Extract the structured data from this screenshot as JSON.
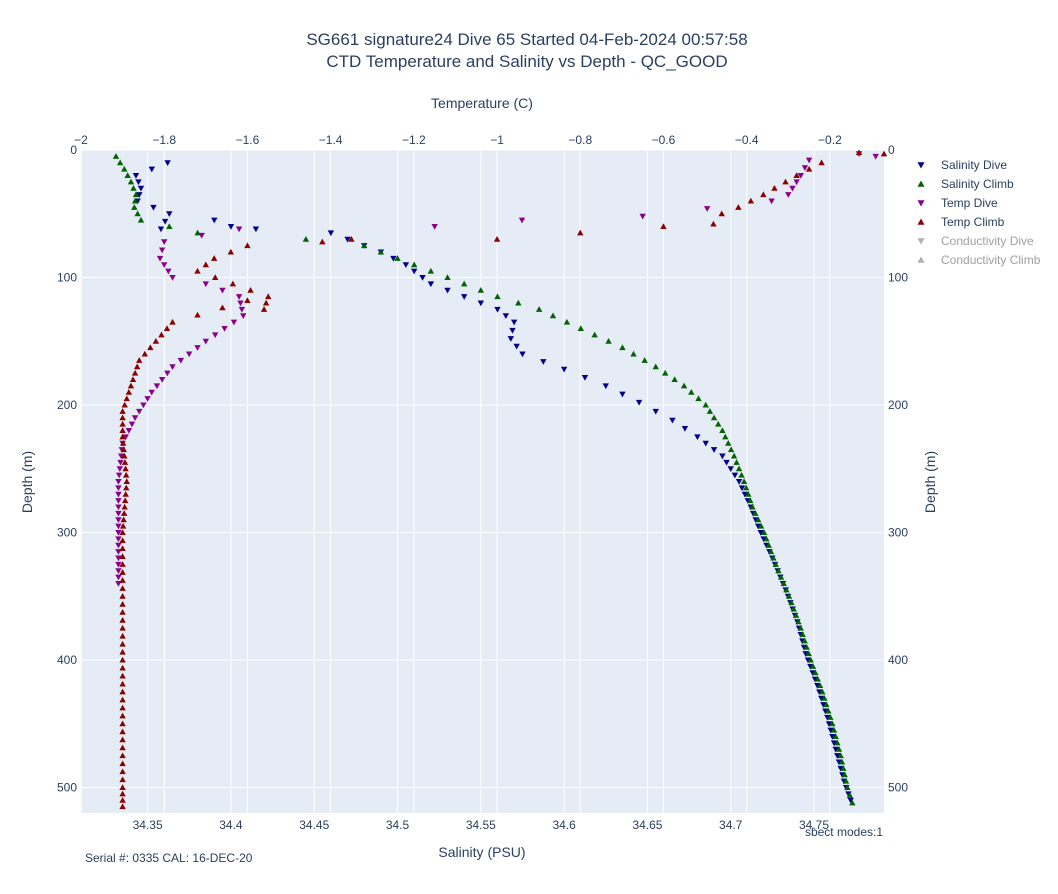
{
  "chart_data": {
    "type": "scatter",
    "title_line1": "SG661 signature24 Dive 65 Started 04-Feb-2024 00:57:58",
    "title_line2": "CTD Temperature and Salinity vs Depth - QC_GOOD",
    "x_top_label": "Temperature (C)",
    "x_bottom_label": "Salinity (PSU)",
    "y_label_left": "Depth (m)",
    "y_label_right": "Depth (m)",
    "x_top_range": [
      -2.0,
      -0.07
    ],
    "x_bottom_range": [
      34.31,
      34.792
    ],
    "y_range": [
      0,
      520
    ],
    "y_reversed": true,
    "x_top_ticks": [
      "−2",
      "−1.8",
      "−1.6",
      "−1.4",
      "−1.2",
      "−1",
      "−0.8",
      "−0.6",
      "−0.4",
      "−0.2"
    ],
    "x_top_tick_values": [
      -2,
      -1.8,
      -1.6,
      -1.4,
      -1.2,
      -1,
      -0.8,
      -0.6,
      -0.4,
      -0.2
    ],
    "x_bottom_ticks": [
      "34.35",
      "34.4",
      "34.45",
      "34.5",
      "34.55",
      "34.6",
      "34.65",
      "34.7",
      "34.75"
    ],
    "x_bottom_tick_values": [
      34.35,
      34.4,
      34.45,
      34.5,
      34.55,
      34.6,
      34.65,
      34.7,
      34.75
    ],
    "y_ticks": [
      "0",
      "100",
      "200",
      "300",
      "400",
      "500"
    ],
    "y_tick_values": [
      0,
      100,
      200,
      300,
      400,
      500
    ],
    "grid": true,
    "legend_position": "right",
    "legend": [
      {
        "name": "Salinity Dive",
        "color": "#00008b",
        "marker": "triangle-down",
        "muted": false
      },
      {
        "name": "Salinity Climb",
        "color": "#006400",
        "marker": "triangle-up",
        "muted": false
      },
      {
        "name": "Temp Dive",
        "color": "#8b008b",
        "marker": "triangle-down",
        "muted": false
      },
      {
        "name": "Temp Climb",
        "color": "#8b0000",
        "marker": "triangle-up",
        "muted": false
      },
      {
        "name": "Conductivity Dive",
        "color": "#b0b0b0",
        "marker": "triangle-down",
        "muted": true
      },
      {
        "name": "Conductivity Climb",
        "color": "#b0b0b0",
        "marker": "triangle-up",
        "muted": true
      }
    ],
    "series": [
      {
        "name": "Salinity Dive",
        "axis": "salinity",
        "color": "#00008b",
        "marker": "triangle-down",
        "points": [
          [
            34.362,
            10
          ],
          [
            34.343,
            20
          ],
          [
            34.346,
            30
          ],
          [
            34.344,
            40
          ],
          [
            34.363,
            50
          ],
          [
            34.358,
            62
          ],
          [
            34.39,
            55
          ],
          [
            34.4,
            60
          ],
          [
            34.415,
            62
          ],
          [
            34.46,
            65
          ],
          [
            34.49,
            80
          ],
          [
            34.505,
            90
          ],
          [
            34.52,
            105
          ],
          [
            34.54,
            115
          ],
          [
            34.56,
            125
          ],
          [
            34.57,
            135
          ],
          [
            34.568,
            148
          ],
          [
            34.575,
            160
          ],
          [
            34.6,
            172
          ],
          [
            34.625,
            185
          ],
          [
            34.645,
            198
          ],
          [
            34.665,
            212
          ],
          [
            34.68,
            225
          ],
          [
            34.695,
            240
          ],
          [
            34.705,
            260
          ],
          [
            34.712,
            280
          ],
          [
            34.718,
            300
          ],
          [
            34.725,
            320
          ],
          [
            34.733,
            345
          ],
          [
            34.74,
            370
          ],
          [
            34.745,
            395
          ],
          [
            34.752,
            420
          ],
          [
            34.758,
            445
          ],
          [
            34.763,
            470
          ],
          [
            34.768,
            495
          ],
          [
            34.772,
            510
          ]
        ]
      },
      {
        "name": "Salinity Climb",
        "axis": "salinity",
        "color": "#006400",
        "marker": "triangle-up",
        "points": [
          [
            34.331,
            5
          ],
          [
            34.336,
            15
          ],
          [
            34.34,
            25
          ],
          [
            34.343,
            35
          ],
          [
            34.342,
            45
          ],
          [
            34.346,
            55
          ],
          [
            34.38,
            65
          ],
          [
            34.445,
            70
          ],
          [
            34.48,
            75
          ],
          [
            34.5,
            85
          ],
          [
            34.52,
            95
          ],
          [
            34.54,
            105
          ],
          [
            34.56,
            115
          ],
          [
            34.585,
            125
          ],
          [
            34.61,
            140
          ],
          [
            34.635,
            155
          ],
          [
            34.655,
            170
          ],
          [
            34.672,
            185
          ],
          [
            34.685,
            200
          ],
          [
            34.695,
            220
          ],
          [
            34.702,
            240
          ],
          [
            34.708,
            260
          ],
          [
            34.713,
            280
          ],
          [
            34.72,
            300
          ],
          [
            34.727,
            325
          ],
          [
            34.735,
            350
          ],
          [
            34.742,
            375
          ],
          [
            34.748,
            400
          ],
          [
            34.755,
            425
          ],
          [
            34.761,
            450
          ],
          [
            34.766,
            475
          ],
          [
            34.77,
            500
          ],
          [
            34.773,
            512
          ]
        ]
      },
      {
        "name": "Temp Dive",
        "axis": "temperature",
        "color": "#8b008b",
        "marker": "triangle-down",
        "points": [
          [
            -0.09,
            5
          ],
          [
            -0.13,
            3
          ],
          [
            -0.25,
            8
          ],
          [
            -0.27,
            20
          ],
          [
            -0.3,
            35
          ],
          [
            -0.34,
            40
          ],
          [
            -0.65,
            52
          ],
          [
            -0.94,
            55
          ],
          [
            -1.15,
            60
          ],
          [
            -1.62,
            62
          ],
          [
            -1.8,
            72
          ],
          [
            -1.81,
            85
          ],
          [
            -1.78,
            100
          ],
          [
            -1.7,
            105
          ],
          [
            -1.62,
            115
          ],
          [
            -1.61,
            130
          ],
          [
            -1.7,
            150
          ],
          [
            -1.78,
            170
          ],
          [
            -1.83,
            190
          ],
          [
            -1.87,
            210
          ],
          [
            -1.9,
            230
          ],
          [
            -1.91,
            260
          ],
          [
            -1.91,
            300
          ],
          [
            -1.91,
            340
          ]
        ]
      },
      {
        "name": "Temp Climb",
        "axis": "temperature",
        "color": "#8b0000",
        "marker": "triangle-up",
        "points": [
          [
            -0.07,
            3
          ],
          [
            -0.13,
            2
          ],
          [
            -0.22,
            10
          ],
          [
            -0.28,
            20
          ],
          [
            -0.36,
            35
          ],
          [
            -0.42,
            45
          ],
          [
            -0.46,
            50
          ],
          [
            -0.48,
            58
          ],
          [
            -0.6,
            60
          ],
          [
            -0.8,
            65
          ],
          [
            -1.0,
            70
          ],
          [
            -1.35,
            70
          ],
          [
            -1.42,
            72
          ],
          [
            -1.6,
            75
          ],
          [
            -1.68,
            85
          ],
          [
            -1.72,
            95
          ],
          [
            -1.55,
            115
          ],
          [
            -1.56,
            125
          ],
          [
            -1.6,
            118
          ],
          [
            -1.78,
            135
          ],
          [
            -1.82,
            150
          ],
          [
            -1.86,
            165
          ],
          [
            -1.88,
            185
          ],
          [
            -1.9,
            205
          ],
          [
            -1.9,
            225
          ],
          [
            -1.89,
            260
          ],
          [
            -1.9,
            300
          ],
          [
            -1.9,
            350
          ],
          [
            -1.9,
            400
          ],
          [
            -1.9,
            450
          ],
          [
            -1.9,
            500
          ],
          [
            -1.9,
            515
          ]
        ]
      }
    ]
  },
  "footer": {
    "serial": "Serial #: 0335  CAL: 16-DEC-20",
    "modes": "sbect modes:1"
  }
}
